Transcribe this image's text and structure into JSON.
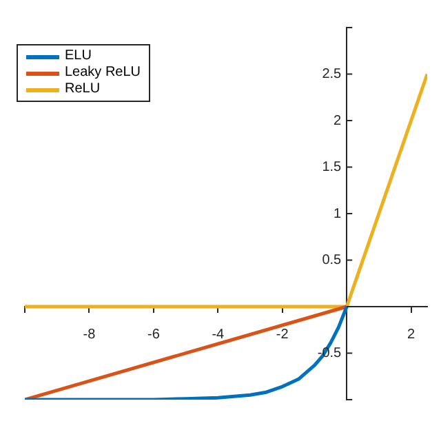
{
  "chart_data": {
    "type": "line",
    "xlim": [
      -10,
      2.5
    ],
    "ylim": [
      -1,
      3
    ],
    "xticks": [
      {
        "value": -10,
        "label": null
      },
      -8,
      -6,
      -4,
      -2,
      {
        "value": 0,
        "label": null
      },
      2
    ],
    "yticks": [
      {
        "value": -1,
        "label": null
      },
      -0.5,
      {
        "value": 0,
        "label": null
      },
      0.5,
      1,
      1.5,
      2,
      2.5,
      {
        "value": 3,
        "label": null
      }
    ],
    "grid": false,
    "legend": "top left",
    "marker": "none",
    "line_style": "solid",
    "series": [
      {
        "name": "ELU",
        "color": "#0072bd",
        "x": [
          -10,
          -8,
          -6,
          -5,
          -4,
          -3,
          -2.5,
          -2,
          -1.5,
          -1,
          -0.75,
          -0.5,
          -0.25,
          0
        ],
        "values": [
          -1,
          -1,
          -1,
          -0.99,
          -0.98,
          -0.95,
          -0.92,
          -0.86,
          -0.78,
          -0.63,
          -0.53,
          -0.39,
          -0.22,
          0
        ]
      },
      {
        "name": "Leaky ReLU",
        "color": "#d95319",
        "x": [
          -10,
          0
        ],
        "values": [
          -1,
          0
        ]
      },
      {
        "name": "ReLU",
        "color": "#edb120",
        "x": [
          -10,
          0,
          2.5
        ],
        "values": [
          0,
          0,
          2.5
        ]
      }
    ]
  }
}
